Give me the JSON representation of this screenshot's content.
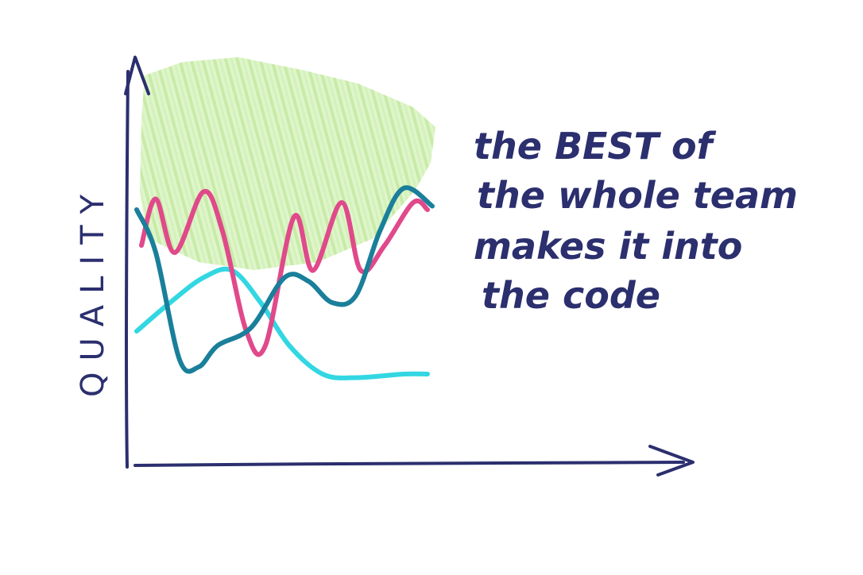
{
  "chart_data": {
    "type": "line",
    "ylabel": "QUALITY",
    "xlabel": "",
    "annotation": [
      "the BEST of",
      "the whole team",
      "makes it into",
      "the code"
    ],
    "grid": false,
    "legend": "none",
    "shaded_region": {
      "label": "",
      "color": "#c6eca0"
    },
    "series": [
      {
        "color": "#e0498a",
        "points": [
          [
            0,
            62
          ],
          [
            3,
            75
          ],
          [
            7,
            60
          ],
          [
            13,
            77
          ],
          [
            17,
            66
          ],
          [
            22,
            38
          ],
          [
            26,
            34
          ],
          [
            32,
            70
          ],
          [
            36,
            55
          ],
          [
            42,
            74
          ],
          [
            46,
            55
          ],
          [
            51,
            62
          ],
          [
            57,
            74
          ],
          [
            60,
            72
          ]
        ]
      },
      {
        "color": "#1a7f9a",
        "points": [
          [
            -1,
            72
          ],
          [
            3,
            60
          ],
          [
            8,
            30
          ],
          [
            12,
            28
          ],
          [
            16,
            34
          ],
          [
            23,
            39
          ],
          [
            30,
            53
          ],
          [
            35,
            52
          ],
          [
            40,
            46
          ],
          [
            45,
            48
          ],
          [
            50,
            66
          ],
          [
            55,
            78
          ],
          [
            61,
            73
          ]
        ]
      },
      {
        "color": "#32d7e2",
        "points": [
          [
            -1,
            38
          ],
          [
            6,
            46
          ],
          [
            13,
            53
          ],
          [
            19,
            55
          ],
          [
            25,
            46
          ],
          [
            31,
            34
          ],
          [
            38,
            26
          ],
          [
            45,
            25
          ],
          [
            55,
            26
          ],
          [
            60,
            26
          ]
        ]
      }
    ]
  }
}
